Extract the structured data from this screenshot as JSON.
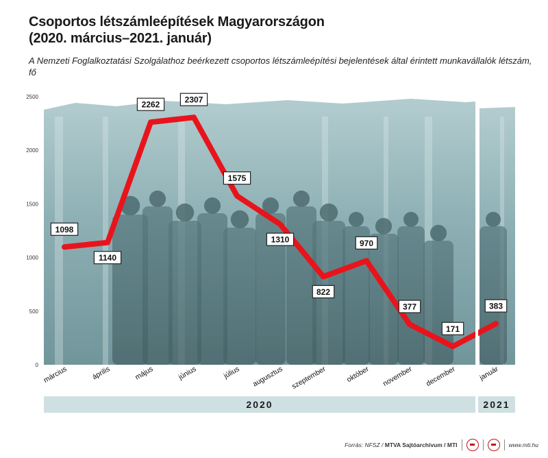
{
  "title_line1": "Csoportos létszámleépítések Magyarországon",
  "title_line2": "(2020. március–2021. január)",
  "subtitle": "A Nemzeti Foglalkoztatási Szolgálathoz beérkezett csoportos létszámleépítési bejelentések által érintett munkavállalók létszám, fő",
  "colors": {
    "line": "#e8141c",
    "photo_bg": "#7fa9ae",
    "year_band": "#cfe0e3"
  },
  "chart_data": {
    "type": "line",
    "title": "Csoportos létszámleépítések Magyarországon (2020. március–2021. január)",
    "xlabel": "",
    "ylabel": "",
    "categories": [
      "március",
      "április",
      "május",
      "június",
      "július",
      "augusztus",
      "szeptember",
      "október",
      "november",
      "december",
      "január"
    ],
    "values": [
      1098,
      1140,
      2262,
      2307,
      1575,
      1310,
      822,
      970,
      377,
      171,
      383
    ],
    "ylim": [
      0,
      2500
    ],
    "yticks": [
      0,
      500,
      1000,
      1500,
      2000,
      2500
    ],
    "grid": false,
    "legend": "none",
    "year_groups": [
      {
        "label": "2020",
        "count": 10
      },
      {
        "label": "2021",
        "count": 1
      }
    ]
  },
  "footer": {
    "source_prefix": "Forrás: NFSZ / ",
    "source_bold": "MTVA Sajtóarchívum / MTI",
    "url": "www.mti.hu"
  }
}
